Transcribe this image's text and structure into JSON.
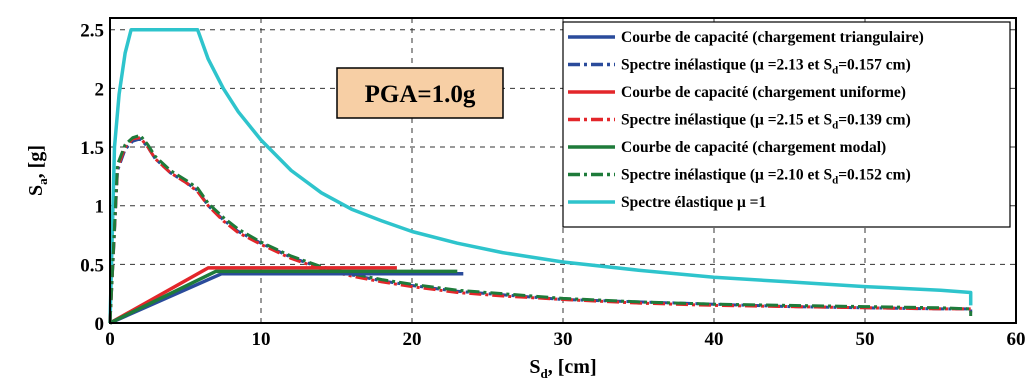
{
  "chart_data": {
    "type": "line",
    "xlabel_main": "S",
    "xlabel_sub": "d",
    "xlabel_tail": ", [cm]",
    "ylabel_main": "S",
    "ylabel_sub": "a",
    "ylabel_tail": ", [g]",
    "xlim": [
      0,
      60
    ],
    "ylim": [
      0,
      2.6
    ],
    "xticks": [
      0,
      10,
      20,
      30,
      40,
      50,
      60
    ],
    "yticks": [
      0,
      0.5,
      1,
      1.5,
      2,
      2.5
    ],
    "ytick_labels": [
      "0",
      "0.5",
      "1",
      "1.5",
      "2",
      "2.5"
    ],
    "grid": true,
    "legend_position": "top-right",
    "annotation": "PGA=1.0g",
    "annotation_bg": "#f7cfa5",
    "series": [
      {
        "name": "Courbe de capacité (chargement triangulaire)",
        "color": "#2a4b9b",
        "dash": "solid",
        "x": [
          0,
          7.4,
          23.4
        ],
        "y": [
          0,
          0.42,
          0.42
        ]
      },
      {
        "name": "Spectre inélastique (μ =2.13 et S",
        "name_sub": "d",
        "name_tail": "=0.157 cm)",
        "color": "#2a4b9b",
        "dash": "dashdot",
        "x": [
          0,
          0.5,
          1.0,
          1.5,
          2.0,
          2.5,
          3,
          4,
          5,
          5.8,
          6.5,
          7.5,
          8.5,
          10,
          12,
          14,
          16,
          18,
          20,
          23,
          26,
          30,
          35,
          40,
          45,
          50,
          55,
          57,
          57
        ],
        "y": [
          0,
          1.3,
          1.48,
          1.55,
          1.57,
          1.5,
          1.4,
          1.28,
          1.2,
          1.13,
          1.0,
          0.88,
          0.78,
          0.68,
          0.56,
          0.47,
          0.41,
          0.36,
          0.32,
          0.27,
          0.24,
          0.2,
          0.18,
          0.16,
          0.14,
          0.13,
          0.12,
          0.12,
          0.08
        ]
      },
      {
        "name": "Courbe de capacité (chargement uniforme)",
        "color": "#e3262a",
        "dash": "solid",
        "x": [
          0,
          6.5,
          19.0
        ],
        "y": [
          0,
          0.47,
          0.47
        ]
      },
      {
        "name": "Spectre inélastique (μ =2.15 et S",
        "name_sub": "d",
        "name_tail": "=0.139 cm)",
        "color": "#e3262a",
        "dash": "dashdot",
        "x": [
          0,
          0.5,
          1.0,
          1.5,
          2.0,
          2.5,
          3,
          4,
          5,
          5.8,
          6.5,
          7.5,
          8.5,
          10,
          12,
          14,
          16,
          18,
          20,
          23,
          26,
          30,
          35,
          40,
          45,
          50,
          55,
          57
        ],
        "y": [
          0,
          1.32,
          1.5,
          1.57,
          1.58,
          1.5,
          1.4,
          1.28,
          1.2,
          1.12,
          1.0,
          0.87,
          0.77,
          0.67,
          0.55,
          0.46,
          0.4,
          0.35,
          0.31,
          0.26,
          0.23,
          0.2,
          0.17,
          0.15,
          0.14,
          0.13,
          0.12,
          0.12
        ]
      },
      {
        "name": "Courbe de capacité (chargement modal)",
        "color": "#1e7b3a",
        "dash": "solid",
        "x": [
          0,
          7.0,
          23.0
        ],
        "y": [
          0,
          0.44,
          0.44
        ]
      },
      {
        "name": "Spectre inélastique (μ =2.10 et S",
        "name_sub": "d",
        "name_tail": "=0.152 cm)",
        "color": "#1e7b3a",
        "dash": "dashdot",
        "x": [
          0,
          0.5,
          1.0,
          1.5,
          2.0,
          2.5,
          3,
          4,
          5,
          5.8,
          6.5,
          7.5,
          8.5,
          10,
          12,
          14,
          16,
          18,
          20,
          23,
          26,
          30,
          35,
          40,
          45,
          50,
          55,
          57,
          57
        ],
        "y": [
          0,
          1.35,
          1.52,
          1.58,
          1.6,
          1.52,
          1.42,
          1.3,
          1.22,
          1.15,
          1.02,
          0.9,
          0.8,
          0.69,
          0.57,
          0.48,
          0.42,
          0.37,
          0.33,
          0.28,
          0.25,
          0.21,
          0.18,
          0.16,
          0.15,
          0.14,
          0.13,
          0.12,
          0.06
        ]
      },
      {
        "name": "Spectre élastique μ =1",
        "color": "#2ec4cc",
        "dash": "solid",
        "x": [
          0,
          0.3,
          0.6,
          1.0,
          1.4,
          2.0,
          3.0,
          4.0,
          5.0,
          5.8,
          6.5,
          7.5,
          8.5,
          10,
          12,
          14,
          16,
          18,
          20,
          23,
          26,
          30,
          35,
          40,
          45,
          50,
          55,
          57,
          57
        ],
        "y": [
          0,
          1.5,
          1.95,
          2.3,
          2.5,
          2.5,
          2.5,
          2.5,
          2.5,
          2.5,
          2.25,
          2.0,
          1.8,
          1.56,
          1.3,
          1.11,
          0.97,
          0.87,
          0.78,
          0.68,
          0.6,
          0.52,
          0.45,
          0.39,
          0.35,
          0.31,
          0.28,
          0.26,
          0.15
        ]
      }
    ]
  }
}
